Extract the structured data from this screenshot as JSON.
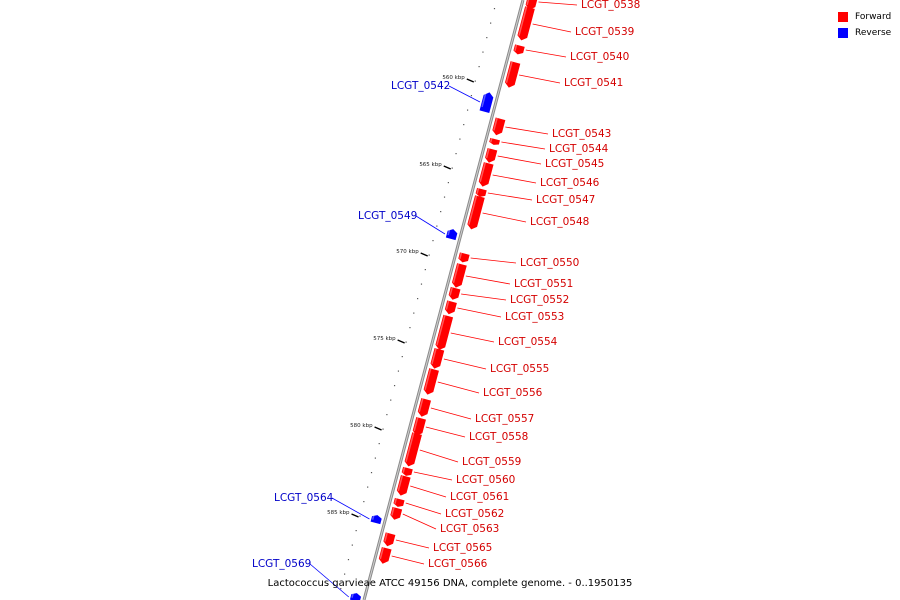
{
  "caption": "Lactococcus garvieae ATCC 49156 DNA, complete genome. - 0..1950135",
  "legend": {
    "forward": {
      "label": "Forward",
      "color": "#ff0000"
    },
    "reverse": {
      "label": "Reverse",
      "color": "#0000ff"
    }
  },
  "ticks": [
    {
      "kbp": 560,
      "label": "560 kbp"
    },
    {
      "kbp": 565,
      "label": "565 kbp"
    },
    {
      "kbp": 570,
      "label": "570 kbp"
    },
    {
      "kbp": 575,
      "label": "575 kbp"
    },
    {
      "kbp": 580,
      "label": "580 kbp"
    },
    {
      "kbp": 585,
      "label": "585 kbp"
    }
  ],
  "genes": [
    {
      "name": "LCGT_0538",
      "strand": "forward"
    },
    {
      "name": "LCGT_0539",
      "strand": "forward"
    },
    {
      "name": "LCGT_0540",
      "strand": "forward"
    },
    {
      "name": "LCGT_0541",
      "strand": "forward"
    },
    {
      "name": "LCGT_0542",
      "strand": "reverse"
    },
    {
      "name": "LCGT_0543",
      "strand": "forward"
    },
    {
      "name": "LCGT_0544",
      "strand": "forward"
    },
    {
      "name": "LCGT_0545",
      "strand": "forward"
    },
    {
      "name": "LCGT_0546",
      "strand": "forward"
    },
    {
      "name": "LCGT_0547",
      "strand": "forward"
    },
    {
      "name": "LCGT_0548",
      "strand": "forward"
    },
    {
      "name": "LCGT_0549",
      "strand": "reverse"
    },
    {
      "name": "LCGT_0550",
      "strand": "forward"
    },
    {
      "name": "LCGT_0551",
      "strand": "forward"
    },
    {
      "name": "LCGT_0552",
      "strand": "forward"
    },
    {
      "name": "LCGT_0553",
      "strand": "forward"
    },
    {
      "name": "LCGT_0554",
      "strand": "forward"
    },
    {
      "name": "LCGT_0555",
      "strand": "forward"
    },
    {
      "name": "LCGT_0556",
      "strand": "forward"
    },
    {
      "name": "LCGT_0557",
      "strand": "forward"
    },
    {
      "name": "LCGT_0558",
      "strand": "forward"
    },
    {
      "name": "LCGT_0559",
      "strand": "forward"
    },
    {
      "name": "LCGT_0560",
      "strand": "forward"
    },
    {
      "name": "LCGT_0561",
      "strand": "forward"
    },
    {
      "name": "LCGT_0562",
      "strand": "forward"
    },
    {
      "name": "LCGT_0563",
      "strand": "forward"
    },
    {
      "name": "LCGT_0564",
      "strand": "reverse"
    },
    {
      "name": "LCGT_0565",
      "strand": "forward"
    },
    {
      "name": "LCGT_0566",
      "strand": "forward"
    },
    {
      "name": "LCGT_0569",
      "strand": "reverse"
    }
  ]
}
